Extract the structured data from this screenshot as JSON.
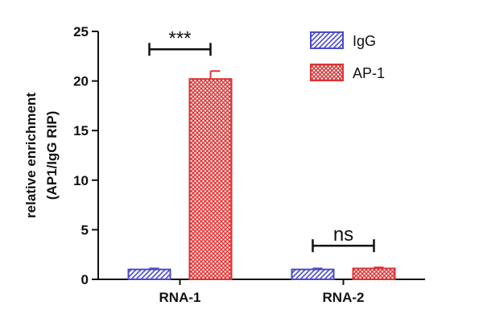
{
  "chart_data": {
    "type": "bar",
    "categories": [
      "RNA-1",
      "RNA-2"
    ],
    "series": [
      {
        "name": "IgG",
        "values": [
          1.0,
          1.0
        ],
        "errors": [
          0.1,
          0.1
        ],
        "color": "#4a4acc",
        "pattern": "diagonal-hatch"
      },
      {
        "name": "AP-1",
        "values": [
          20.2,
          1.1
        ],
        "errors": [
          0.8,
          0.1
        ],
        "color": "#dd3333",
        "pattern": "cross-hatch"
      }
    ],
    "ylabel_line1": "relative enrichment",
    "ylabel_line2": "(AP1/IgG RIP)",
    "ylim": [
      0,
      25
    ],
    "yticks": [
      0,
      5,
      10,
      15,
      20,
      25
    ],
    "ytick_labels": [
      "0",
      "5",
      "10",
      "15",
      "20",
      "25"
    ],
    "annotations": [
      {
        "category": "RNA-1",
        "text": "***"
      },
      {
        "category": "RNA-2",
        "text": "ns"
      }
    ],
    "legend_position": "top-right",
    "grid": false
  }
}
